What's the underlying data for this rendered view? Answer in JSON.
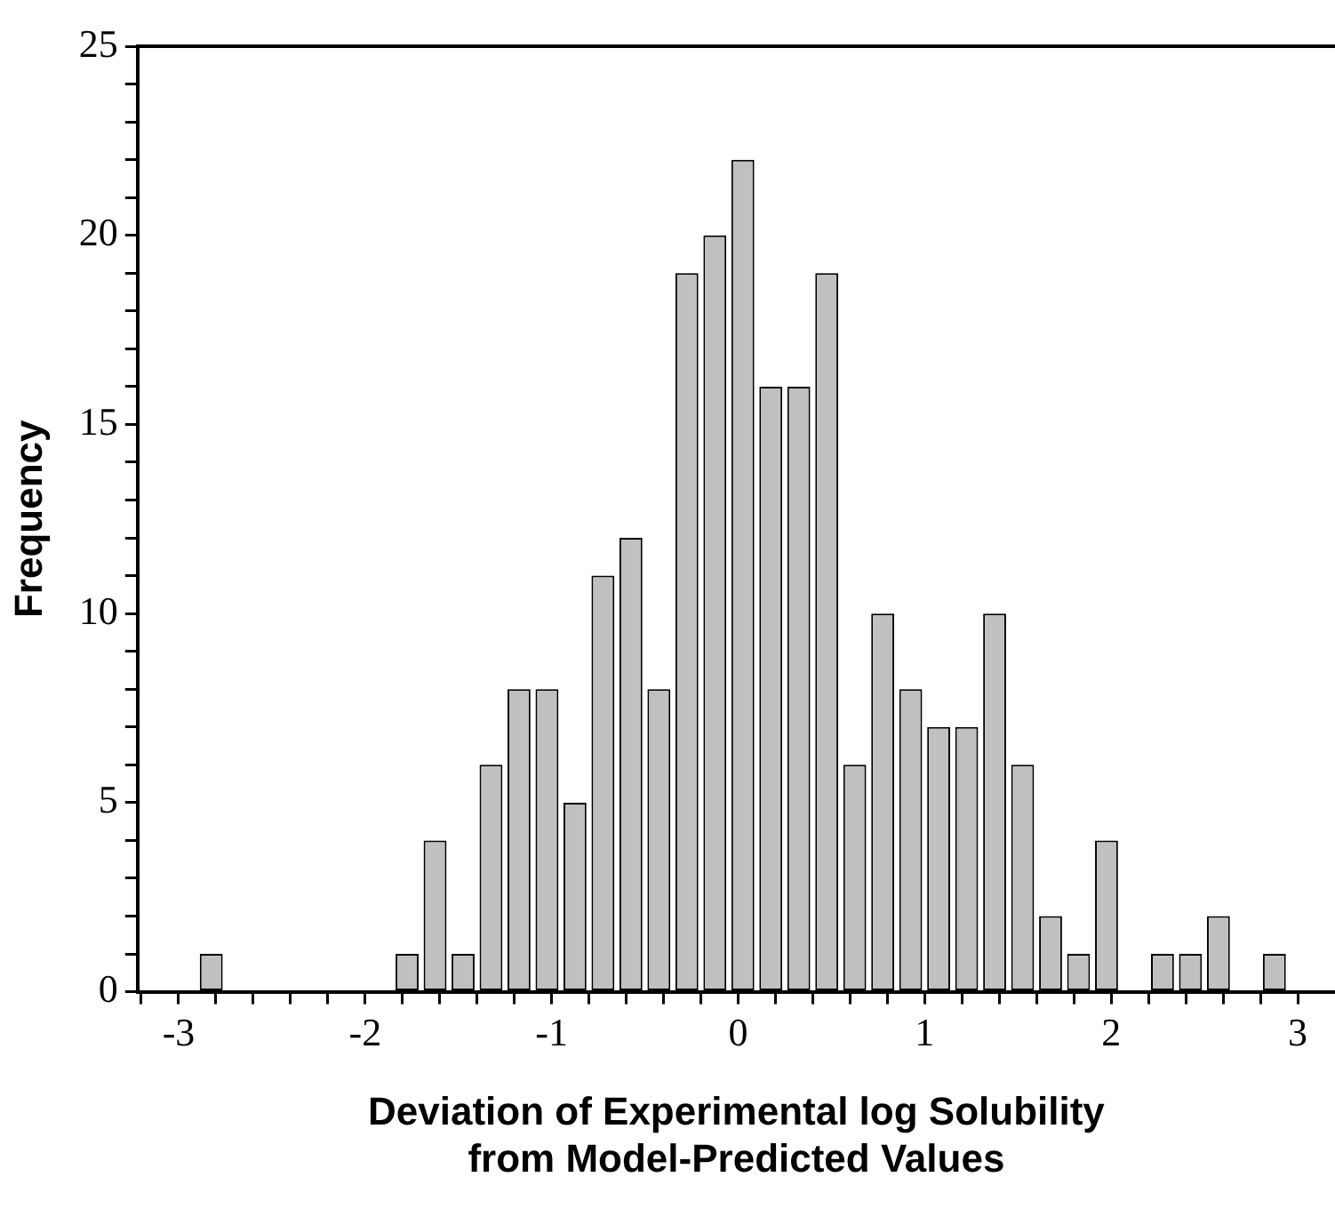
{
  "chart_data": {
    "type": "histogram",
    "xlabel": "Deviation of Experimental log Solubility\nfrom Model-Predicted Values",
    "ylabel": "Frequency",
    "bins": [
      -2.9,
      -2.75,
      -2.6,
      -2.45,
      -2.3,
      -2.15,
      -2,
      -1.85,
      -1.7,
      -1.55,
      -1.4,
      -1.25,
      -1.1,
      -0.95,
      -0.8,
      -0.65,
      -0.5,
      -0.35,
      -0.2,
      -0.05,
      0.1,
      0.25,
      0.4,
      0.55,
      0.7,
      0.85,
      1,
      1.15,
      1.3,
      1.45,
      1.6,
      1.75,
      1.9,
      2.05,
      2.2,
      2.35,
      2.5,
      2.65,
      2.8,
      2.95
    ],
    "values": [
      1,
      0,
      0,
      0,
      0,
      0,
      0,
      1,
      4,
      1,
      6,
      8,
      8,
      5,
      11,
      12,
      8,
      19,
      20,
      22,
      16,
      16,
      19,
      6,
      10,
      8,
      7,
      7,
      10,
      6,
      2,
      1,
      4,
      0,
      1,
      1,
      2,
      0,
      1
    ],
    "color": "#c0c0c0",
    "xlim": [
      -3.22,
      3.2
    ],
    "xticks": [
      {
        "value": -3.2,
        "label": null
      },
      -3,
      {
        "value": -2.8,
        "label": null
      },
      {
        "value": -2.6,
        "label": null
      },
      {
        "value": -2.4,
        "label": null
      },
      {
        "value": -2.2,
        "label": null
      },
      -2,
      {
        "value": -1.8,
        "label": null
      },
      {
        "value": -1.6,
        "label": null
      },
      {
        "value": -1.4,
        "label": null
      },
      {
        "value": -1.2,
        "label": null
      },
      -1,
      {
        "value": -0.8,
        "label": null
      },
      {
        "value": -0.6,
        "label": null
      },
      {
        "value": -0.4,
        "label": null
      },
      {
        "value": -0.2,
        "label": null
      },
      0,
      {
        "value": 0.2,
        "label": null
      },
      {
        "value": 0.4,
        "label": null
      },
      {
        "value": 0.6,
        "label": null
      },
      {
        "value": 0.8,
        "label": null
      },
      1,
      {
        "value": 1.2,
        "label": null
      },
      {
        "value": 1.4,
        "label": null
      },
      {
        "value": 1.6,
        "label": null
      },
      {
        "value": 1.8,
        "label": null
      },
      2,
      {
        "value": 2.2,
        "label": null
      },
      {
        "value": 2.4,
        "label": null
      },
      {
        "value": 2.6,
        "label": null
      },
      {
        "value": 2.8,
        "label": null
      },
      3
    ],
    "ylim": [
      0,
      25
    ],
    "yticks": [
      0,
      {
        "value": 1,
        "label": null
      },
      {
        "value": 2,
        "label": null
      },
      {
        "value": 3,
        "label": null
      },
      {
        "value": 4,
        "label": null
      },
      5,
      {
        "value": 6,
        "label": null
      },
      {
        "value": 7,
        "label": null
      },
      {
        "value": 8,
        "label": null
      },
      {
        "value": 9,
        "label": null
      },
      10,
      {
        "value": 11,
        "label": null
      },
      {
        "value": 12,
        "label": null
      },
      {
        "value": 13,
        "label": null
      },
      {
        "value": 14,
        "label": null
      },
      15,
      {
        "value": 16,
        "label": null
      },
      {
        "value": 17,
        "label": null
      },
      {
        "value": 18,
        "label": null
      },
      {
        "value": 19,
        "label": null
      },
      20,
      {
        "value": 21,
        "label": null
      },
      {
        "value": 22,
        "label": null
      },
      {
        "value": 23,
        "label": null
      },
      {
        "value": 24,
        "label": null
      },
      25
    ],
    "grid": false,
    "legend": false
  }
}
